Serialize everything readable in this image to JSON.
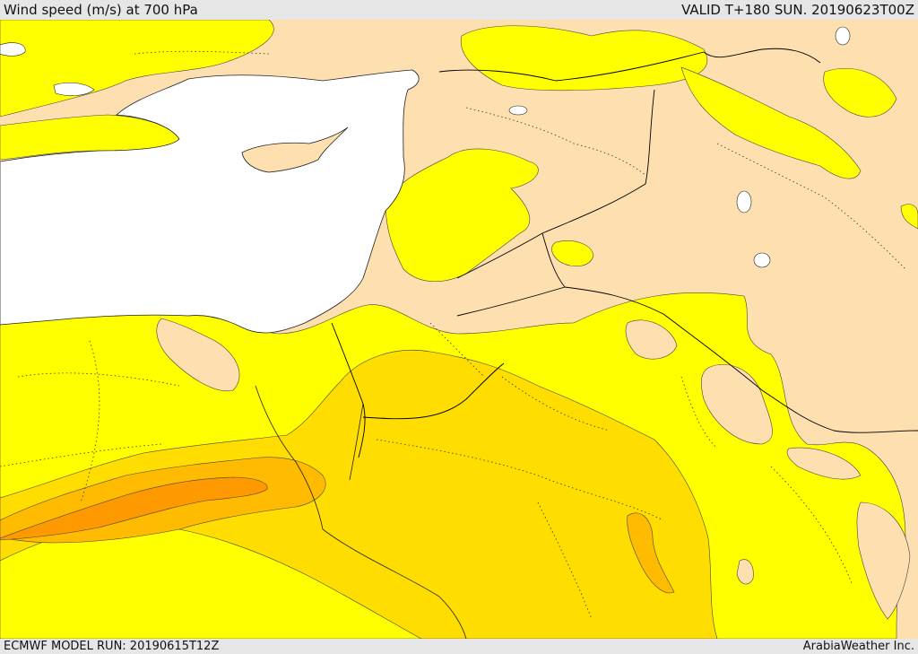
{
  "header": {
    "title": "Wind speed (m/s) at 700 hPa",
    "valid": "VALID T+180 SUN. 20190623T00Z"
  },
  "footer": {
    "model_run": "ECMWF MODEL RUN: 20190615T12Z",
    "credit": "ArabiaWeather Inc."
  },
  "colors": {
    "land_calm": "#fddfb0",
    "wind_light": "#ffff00",
    "wind_moderate": "#ffdd00",
    "wind_strong": "#ffbb00",
    "wind_very_strong": "#ff9900",
    "sea": "#ffffff",
    "borders": "#000000"
  }
}
